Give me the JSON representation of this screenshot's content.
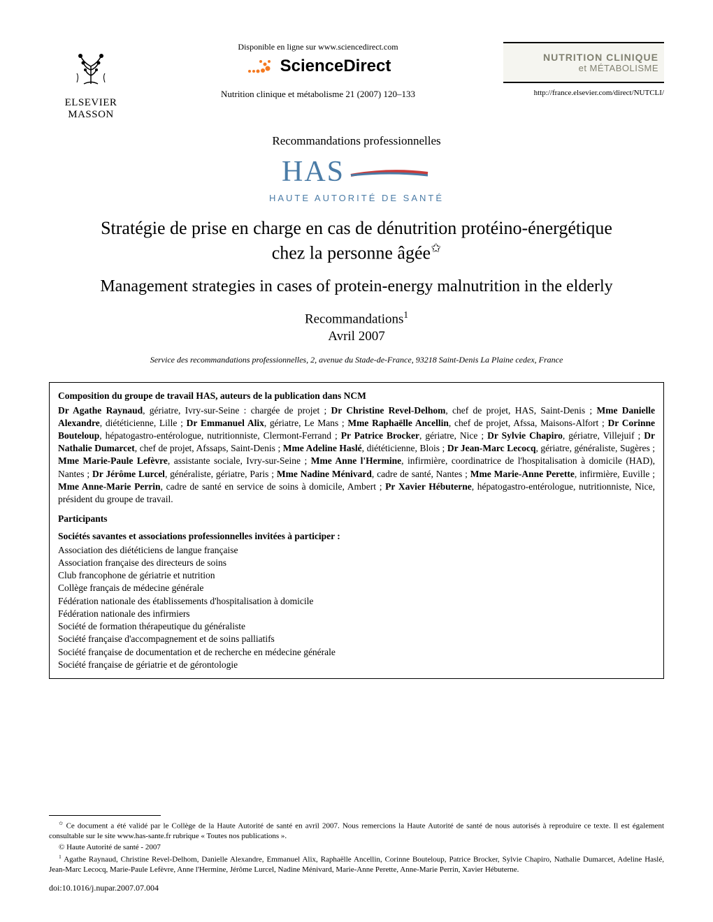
{
  "header": {
    "publisher_name": "ELSEVIER\nMASSON",
    "online_text": "Disponible en ligne sur www.sciencedirect.com",
    "sd_brand": "ScienceDirect",
    "citation": "Nutrition clinique et métabolisme 21 (2007) 120–133",
    "journal_title_main": "NUTRITION CLINIQUE",
    "journal_title_sub": "et MÉTABOLISME",
    "journal_url": "http://france.elsevier.com/direct/NUTCLI/"
  },
  "section_label": "Recommandations professionnelles",
  "has": {
    "acronym": "HAS",
    "full": "HAUTE AUTORITÉ DE SANTÉ"
  },
  "title_fr_line1": "Stratégie de prise en charge en cas de dénutrition protéino-énergétique",
  "title_fr_line2": "chez la personne âgée",
  "title_en": "Management strategies in cases of protein-energy malnutrition in the elderly",
  "subtitle_line1": "Recommandations",
  "subtitle_line2": "Avril 2007",
  "affiliation": "Service des recommandations professionnelles, 2, avenue du Stade-de-France, 93218 Saint-Denis La Plaine cedex, France",
  "box": {
    "heading": "Composition du groupe de travail HAS, auteurs de la publication dans NCM",
    "authors_html": "<b>Dr Agathe Raynaud</b>, gériatre, Ivry-sur-Seine : chargée de projet ; <b>Dr Christine Revel-Delhom</b>, chef de projet, HAS, Saint-Denis ; <b>Mme Danielle Alexandre</b>, diététicienne, Lille ; <b>Dr Emmanuel Alix</b>, gériatre, Le Mans ; <b>Mme Raphaëlle Ancellin</b>, chef de projet, Afssa, Maisons-Alfort ; <b>Dr Corinne Bouteloup</b>, hépatogastro-entérologue, nutritionniste, Clermont-Ferrand ; <b>Pr Patrice Brocker</b>, gériatre, Nice ; <b>Dr Sylvie Chapiro</b>, gériatre, Villejuif ; <b>Dr Nathalie Dumarcet</b>, chef de projet, Afssaps, Saint-Denis ; <b>Mme Adeline Haslé</b>, diététicienne, Blois ; <b>Dr Jean-Marc Lecocq</b>, gériatre, généraliste, Sugères ; <b>Mme Marie-Paule Lefèvre</b>, assistante sociale, Ivry-sur-Seine ; <b>Mme Anne l'Hermine</b>, infirmière, coordinatrice de l'hospitalisation à domicile (HAD), Nantes ; <b>Dr Jérôme Lurcel</b>, généraliste, gériatre, Paris ; <b>Mme Nadine Ménivard</b>, cadre de santé, Nantes ; <b>Mme Marie-Anne Perette</b>, infirmière, Euville ; <b>Mme Anne-Marie Perrin</b>, cadre de santé en service de soins à domicile, Ambert ; <b>Pr Xavier Hébuterne</b>, hépatogastro-entérologue, nutritionniste, Nice, président du groupe de travail.",
    "participants_heading": "Participants",
    "assoc_heading": "Sociétés savantes et associations professionnelles invitées à participer :",
    "associations": [
      "Association des diététiciens de langue française",
      "Association française des directeurs de soins",
      "Club francophone de gériatrie et nutrition",
      "Collège français de médecine générale",
      "Fédération nationale des établissements d'hospitalisation à domicile",
      "Fédération nationale des infirmiers",
      "Société de formation thérapeutique du généraliste",
      "Société française d'accompagnement et de soins palliatifs",
      "Société française de documentation et de recherche en médecine générale",
      "Société française de gériatrie et de gérontologie"
    ]
  },
  "footnotes": {
    "star": "Ce document a été validé par le Collège de la Haute Autorité de santé en avril 2007. Nous remercions la Haute Autorité de santé de nous autorisés à reproduire ce texte. Il est également consultable sur le site www.has-sante.fr rubrique « Toutes nos publications ».",
    "copyright": "© Haute Autorité de santé - 2007",
    "fn1": "Agathe Raynaud, Christine Revel-Delhom, Danielle Alexandre, Emmanuel Alix, Raphaëlle Ancellin, Corinne Bouteloup, Patrice Brocker, Sylvie Chapiro, Nathalie Dumarcet, Adeline Haslé, Jean-Marc Lecocq, Marie-Paule Lefèvre, Anne l'Hermine, Jérôme Lurcel, Nadine Ménivard, Marie-Anne Perette, Anne-Marie Perrin, Xavier Hébuterne."
  },
  "doi": "doi:10.1016/j.nupar.2007.07.004",
  "colors": {
    "text": "#000000",
    "has_blue": "#4a7ba6",
    "has_red": "#c83c3c",
    "journal_gray": "#808070",
    "journal_bg": "#f5f5f0",
    "sd_orange": "#f47920"
  }
}
